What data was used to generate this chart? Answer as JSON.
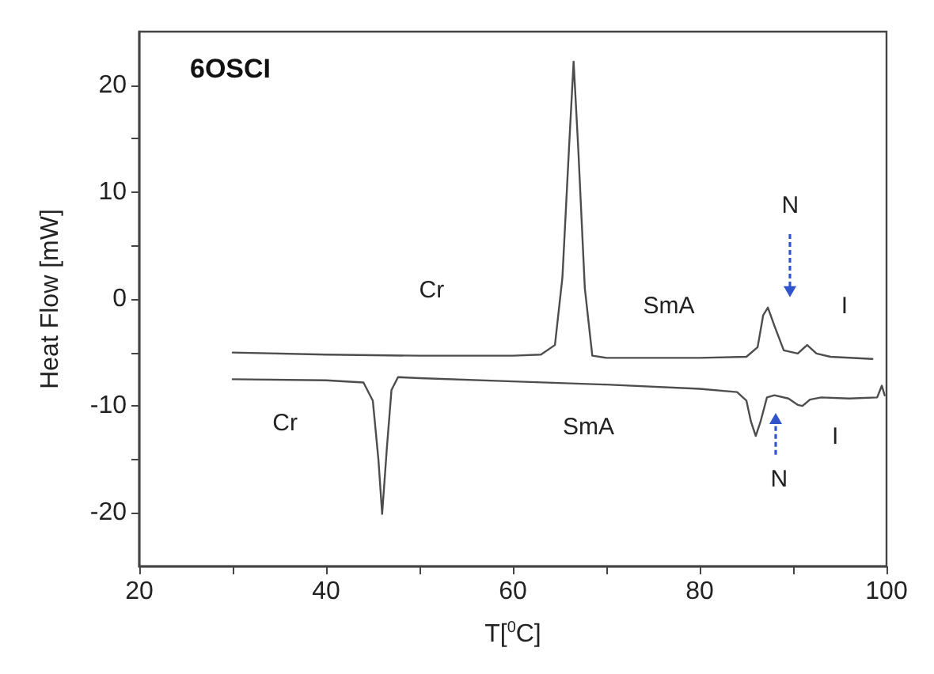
{
  "chart_data": {
    "type": "line",
    "title": "6OSCI",
    "xlabel": "T[$^{0}$C]",
    "ylabel": "Heat Flow [mW]",
    "xlim": [
      20,
      100
    ],
    "xticks": [
      20,
      {
        "value": 30,
        "label": null
      },
      40,
      {
        "value": 50,
        "label": null
      },
      60,
      {
        "value": 70,
        "label": null
      },
      80,
      {
        "value": 90,
        "label": null
      },
      100
    ],
    "ylim": [
      -25,
      25
    ],
    "yticks": [
      -20,
      {
        "value": -15,
        "label": null
      },
      -10,
      {
        "value": -5,
        "label": null
      },
      0,
      {
        "value": 5,
        "label": null
      },
      10,
      {
        "value": 15,
        "label": null
      },
      20
    ],
    "marker": "none",
    "line_style": "solid",
    "series": [
      {
        "color": "#4d4d4d",
        "x": [
          30,
          40,
          50,
          60,
          63,
          64.5,
          65.3,
          66,
          66.5,
          67,
          67.7,
          68.5,
          70,
          80,
          85,
          86.2,
          86.8,
          87.3,
          88,
          89,
          90.5,
          91.5,
          92.5,
          94,
          98.5
        ],
        "values": [
          -5.0,
          -5.2,
          -5.3,
          -5.3,
          -5.2,
          -4.3,
          2,
          14,
          22.2,
          14,
          1,
          -5.3,
          -5.5,
          -5.5,
          -5.4,
          -4.5,
          -1.5,
          -0.8,
          -2.5,
          -4.8,
          -5.1,
          -4.3,
          -5.1,
          -5.4,
          -5.6
        ]
      },
      {
        "color": "#4d4d4d",
        "x": [
          30,
          40,
          44,
          45,
          45.6,
          46,
          46.5,
          47,
          47.7,
          50,
          60,
          70,
          80,
          84,
          85,
          85.5,
          86,
          86.5,
          87.2,
          88,
          89.5,
          90.5,
          91,
          91.8,
          93,
          96,
          99,
          99.5,
          99.8
        ],
        "values": [
          -7.5,
          -7.6,
          -7.8,
          -9.5,
          -15,
          -20.1,
          -14,
          -8.5,
          -7.3,
          -7.4,
          -7.7,
          -8.0,
          -8.4,
          -8.7,
          -9.5,
          -11.5,
          -12.8,
          -11.5,
          -9.2,
          -9.0,
          -9.3,
          -9.9,
          -10.0,
          -9.4,
          -9.2,
          -9.3,
          -9.2,
          -8.1,
          -9.0
        ]
      }
    ],
    "annotations": [
      "Cr",
      "SmA",
      "N",
      "I",
      "Cr",
      "SmA",
      "N",
      "I"
    ]
  }
}
